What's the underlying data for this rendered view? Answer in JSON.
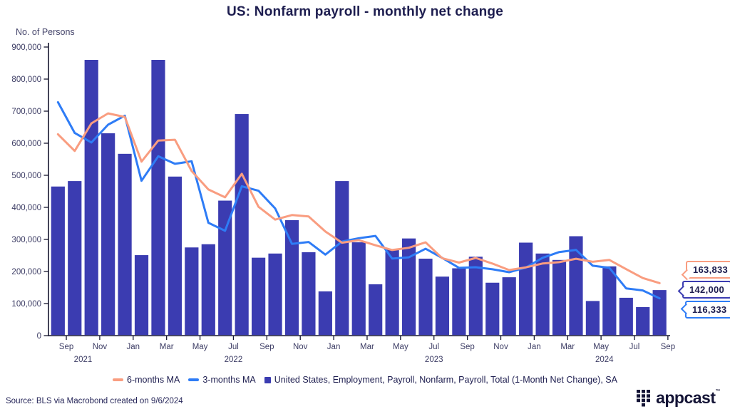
{
  "title": "US: Nonfarm payroll - monthly net change",
  "y_axis_label": "No. of Persons",
  "source_note": "Source: BLS via Macrobond created on 9/6/2024",
  "logo": {
    "text": "appcast",
    "tm": "TM"
  },
  "colors": {
    "bar": "#3b3cb1",
    "ma3_line": "#2e7cf6",
    "ma6_line": "#f99d80",
    "axis": "#15152e",
    "tick_text": "#3c3c64",
    "title_text": "#1d1d4f"
  },
  "legend": [
    {
      "label": "6-months MA",
      "color": "#f99d80",
      "marker": "line"
    },
    {
      "label": "3-months MA",
      "color": "#2e7cf6",
      "marker": "line"
    },
    {
      "label": "United States, Employment, Payroll, Nonfarm, Payroll, Total (1-Month Net Change), SA",
      "color": "#3b3cb1",
      "marker": "square"
    }
  ],
  "callouts": [
    {
      "value": "163,833",
      "color": "#f99d80",
      "series": "6-months MA"
    },
    {
      "value": "142,000",
      "color": "#3b3cb1",
      "series": "1-Month Net Change"
    },
    {
      "value": "116,333",
      "color": "#2e7cf6",
      "series": "3-months MA"
    }
  ],
  "chart_data": {
    "type": "bar",
    "title": "US: Nonfarm payroll - monthly net change",
    "ylabel": "No. of Persons",
    "ylim": [
      0,
      900000
    ],
    "y_ticks": [
      0,
      100000,
      200000,
      300000,
      400000,
      500000,
      600000,
      700000,
      800000,
      900000
    ],
    "grid": false,
    "legend_position": "bottom",
    "x": [
      "Aug 2021",
      "Sep 2021",
      "Oct 2021",
      "Nov 2021",
      "Dec 2021",
      "Jan 2022",
      "Feb 2022",
      "Mar 2022",
      "Apr 2022",
      "May 2022",
      "Jun 2022",
      "Jul 2022",
      "Aug 2022",
      "Sep 2022",
      "Oct 2022",
      "Nov 2022",
      "Dec 2022",
      "Jan 2023",
      "Feb 2023",
      "Mar 2023",
      "Apr 2023",
      "May 2023",
      "Jun 2023",
      "Jul 2023",
      "Aug 2023",
      "Sep 2023",
      "Oct 2023",
      "Nov 2023",
      "Dec 2023",
      "Jan 2024",
      "Feb 2024",
      "Mar 2024",
      "Apr 2024",
      "May 2024",
      "Jun 2024",
      "Jul 2024",
      "Aug 2024"
    ],
    "series": [
      {
        "name": "United States, Employment, Payroll, Nonfarm, Payroll, Total (1-Month Net Change), SA",
        "type": "bar",
        "values": [
          465000,
          482000,
          860000,
          631000,
          567000,
          251000,
          860000,
          496000,
          275000,
          285000,
          421000,
          691000,
          243000,
          256000,
          360000,
          260000,
          138000,
          482000,
          291000,
          160000,
          270000,
          303000,
          240000,
          184000,
          210000,
          246000,
          165000,
          182000,
          290000,
          256000,
          236000,
          310000,
          108000,
          216000,
          118000,
          89000,
          142000
        ]
      },
      {
        "name": "3-months MA",
        "type": "line",
        "values": [
          728000,
          632000,
          602333,
          657667,
          686000,
          483000,
          559333,
          535667,
          543667,
          352000,
          327000,
          465667,
          451667,
          396667,
          286333,
          292000,
          252667,
          293333,
          303667,
          311000,
          240333,
          244333,
          271000,
          242333,
          211333,
          213333,
          207000,
          197667,
          212333,
          242667,
          260667,
          267333,
          218000,
          211333,
          147333,
          141000,
          116333
        ]
      },
      {
        "name": "6-months MA",
        "type": "line",
        "values": [
          628000,
          576000,
          662000,
          693000,
          682000,
          542667,
          608500,
          610833,
          513333,
          455667,
          431333,
          504667,
          401833,
          361833,
          376000,
          371833,
          324667,
          289833,
          297833,
          281833,
          266833,
          274000,
          291000,
          241333,
          227833,
          242167,
          224667,
          204500,
          212833,
          224833,
          229167,
          239833,
          230333,
          236000,
          207333,
          179500,
          163833
        ]
      }
    ],
    "x_tick_labels": [
      {
        "label": "Sep",
        "boundary": 1
      },
      {
        "label": "Nov",
        "boundary": 3
      },
      {
        "label": "Jan",
        "boundary": 5
      },
      {
        "label": "Mar",
        "boundary": 7
      },
      {
        "label": "May",
        "boundary": 9
      },
      {
        "label": "Jul",
        "boundary": 11
      },
      {
        "label": "Sep",
        "boundary": 13
      },
      {
        "label": "Nov",
        "boundary": 15
      },
      {
        "label": "Jan",
        "boundary": 17
      },
      {
        "label": "Mar",
        "boundary": 19
      },
      {
        "label": "May",
        "boundary": 21
      },
      {
        "label": "Jul",
        "boundary": 23
      },
      {
        "label": "Sep",
        "boundary": 25
      },
      {
        "label": "Nov",
        "boundary": 27
      },
      {
        "label": "Jan",
        "boundary": 29
      },
      {
        "label": "Mar",
        "boundary": 31
      },
      {
        "label": "May",
        "boundary": 33
      },
      {
        "label": "Jul",
        "boundary": 35
      },
      {
        "label": "Sep",
        "boundary": 37
      }
    ],
    "year_labels": [
      {
        "label": "2021",
        "boundary": 2.0
      },
      {
        "label": "2022",
        "boundary": 11.0
      },
      {
        "label": "2023",
        "boundary": 23.0
      },
      {
        "label": "2024",
        "boundary": 33.2
      }
    ]
  }
}
